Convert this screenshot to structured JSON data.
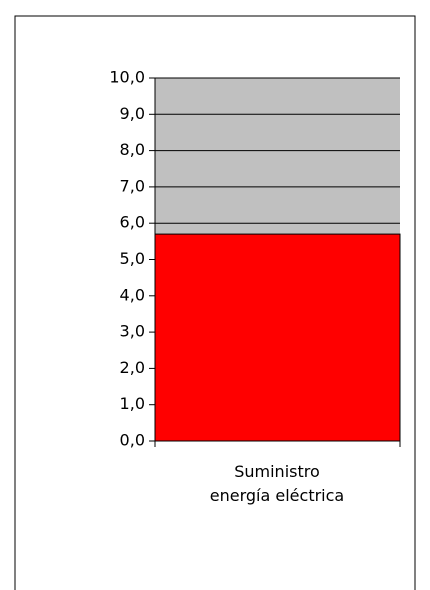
{
  "chart_data": {
    "type": "bar",
    "categories": [
      "Suministro energía eléctrica"
    ],
    "values": [
      5.7
    ],
    "color": "#ff0000",
    "plot_background": "#c0c0c0",
    "ylim": [
      0,
      10
    ],
    "yticks": [
      {
        "value": 0,
        "label": "0,0"
      },
      {
        "value": 1,
        "label": "1,0"
      },
      {
        "value": 2,
        "label": "2,0"
      },
      {
        "value": 3,
        "label": "3,0"
      },
      {
        "value": 4,
        "label": "4,0"
      },
      {
        "value": 5,
        "label": "5,0"
      },
      {
        "value": 6,
        "label": "6,0"
      },
      {
        "value": 7,
        "label": "7,0"
      },
      {
        "value": 8,
        "label": "8,0"
      },
      {
        "value": 9,
        "label": "9,0"
      },
      {
        "value": 10,
        "label": "10,0"
      }
    ],
    "grid": true
  }
}
